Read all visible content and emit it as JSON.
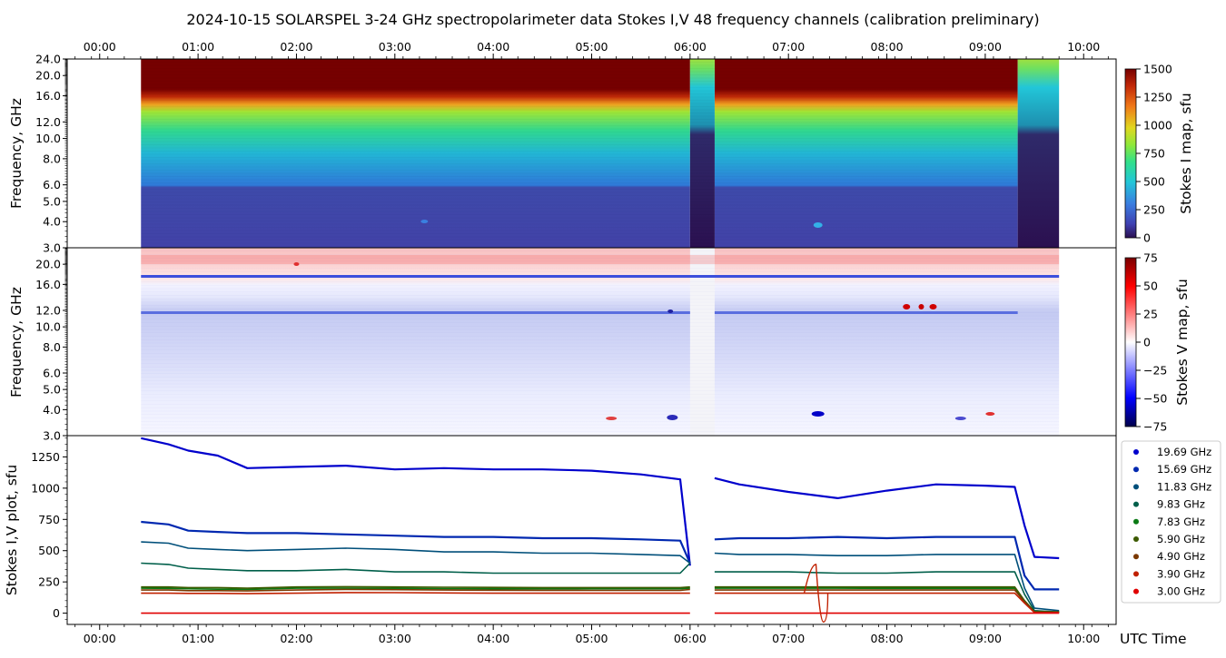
{
  "title": "2024-10-15  SOLARSPEL  3-24 GHz spectropolarimeter data   Stokes I,V   48 frequency channels   (calibration preliminary)",
  "time_ticks": [
    "00:00",
    "01:00",
    "02:00",
    "03:00",
    "04:00",
    "05:00",
    "06:00",
    "07:00",
    "08:00",
    "09:00",
    "10:00"
  ],
  "freq_ticks": [
    "3.0",
    "4.0",
    "5.0",
    "6.0",
    "8.0",
    "10.0",
    "12.0",
    "16.0",
    "20.0",
    "24.0"
  ],
  "panel1": {
    "ylabel": "Frequency, GHz",
    "cbar_label": "Stokes I map, sfu",
    "cbar_ticks": [
      "0",
      "250",
      "500",
      "750",
      "1000",
      "1250",
      "1500"
    ]
  },
  "panel2": {
    "ylabel": "Frequency, GHz",
    "cbar_label": "Stokes V map, sfu",
    "cbar_ticks": [
      "−75",
      "−50",
      "−25",
      "0",
      "25",
      "50",
      "75"
    ]
  },
  "panel3": {
    "ylabel": "Stokes I,V plot, sfu",
    "xlabel": "UTC Time",
    "y_ticks": [
      "0",
      "250",
      "500",
      "750",
      "1000",
      "1250"
    ]
  },
  "legend": [
    {
      "label": "19.69 GHz",
      "color": "#0000cc"
    },
    {
      "label": "15.69 GHz",
      "color": "#0028b0"
    },
    {
      "label": "11.83 GHz",
      "color": "#004f7a"
    },
    {
      "label": "9.83 GHz",
      "color": "#005f4a"
    },
    {
      "label": "7.83 GHz",
      "color": "#0a7a14"
    },
    {
      "label": "5.90 GHz",
      "color": "#3c5a00"
    },
    {
      "label": "4.90 GHz",
      "color": "#7a3800"
    },
    {
      "label": "3.90 GHz",
      "color": "#c02000"
    },
    {
      "label": "3.00 GHz",
      "color": "#e00000"
    }
  ],
  "chart_data": {
    "type": "line",
    "title": "2024-10-15  SOLARSPEL  3-24 GHz spectropolarimeter data   Stokes I,V   48 frequency channels   (calibration preliminary)",
    "xlabel": "UTC Time",
    "ylabel": "Stokes I,V plot, sfu",
    "xlim": [
      -0.33,
      10.33
    ],
    "ylim": [
      -90,
      1420
    ],
    "x": [
      0.42,
      0.7,
      0.9,
      1.2,
      1.5,
      2.0,
      2.5,
      3.0,
      3.5,
      4.0,
      4.5,
      5.0,
      5.5,
      5.9,
      6.0,
      6.25,
      6.5,
      7.0,
      7.5,
      8.0,
      8.5,
      9.0,
      9.3,
      9.4,
      9.5,
      9.75
    ],
    "gap": [
      6.0,
      6.25
    ],
    "series": [
      {
        "name": "19.69 GHz",
        "values": [
          1400,
          1350,
          1300,
          1260,
          1160,
          1170,
          1180,
          1150,
          1160,
          1150,
          1150,
          1140,
          1110,
          1070,
          380,
          1080,
          1030,
          970,
          920,
          980,
          1030,
          1020,
          1010,
          700,
          450,
          440
        ]
      },
      {
        "name": "15.69 GHz",
        "values": [
          730,
          710,
          660,
          650,
          640,
          640,
          630,
          620,
          610,
          610,
          600,
          600,
          590,
          580,
          400,
          590,
          600,
          600,
          610,
          600,
          610,
          610,
          610,
          300,
          190,
          190
        ]
      },
      {
        "name": "11.83 GHz",
        "values": [
          570,
          560,
          520,
          510,
          500,
          510,
          520,
          510,
          490,
          490,
          480,
          480,
          470,
          460,
          400,
          480,
          470,
          470,
          460,
          460,
          470,
          470,
          470,
          200,
          40,
          20
        ]
      },
      {
        "name": "9.83 GHz",
        "values": [
          400,
          390,
          360,
          350,
          340,
          340,
          350,
          330,
          330,
          320,
          320,
          320,
          320,
          320,
          400,
          330,
          330,
          330,
          320,
          320,
          330,
          330,
          330,
          150,
          20,
          10
        ]
      },
      {
        "name": "7.83 GHz",
        "values": [
          200,
          198,
          195,
          192,
          190,
          200,
          200,
          198,
          196,
          195,
          195,
          195,
          195,
          195,
          200,
          200,
          200,
          200,
          200,
          198,
          198,
          198,
          198,
          90,
          10,
          10
        ]
      },
      {
        "name": "5.90 GHz",
        "values": [
          210,
          210,
          205,
          205,
          200,
          210,
          212,
          210,
          208,
          206,
          205,
          205,
          205,
          205,
          210,
          210,
          210,
          210,
          210,
          210,
          210,
          210,
          210,
          100,
          12,
          10
        ]
      },
      {
        "name": "4.90 GHz",
        "values": [
          185,
          185,
          180,
          180,
          178,
          185,
          190,
          188,
          185,
          184,
          183,
          182,
          182,
          182,
          190,
          185,
          185,
          185,
          185,
          185,
          185,
          185,
          185,
          90,
          8,
          8
        ]
      },
      {
        "name": "3.90 GHz",
        "values": [
          160,
          160,
          158,
          158,
          156,
          160,
          165,
          164,
          162,
          160,
          160,
          160,
          160,
          160,
          160,
          160,
          160,
          160,
          160,
          160,
          160,
          160,
          160,
          80,
          5,
          5
        ]
      },
      {
        "name": "3.00 GHz",
        "values": [
          0,
          0,
          0,
          0,
          0,
          0,
          0,
          0,
          0,
          0,
          0,
          0,
          0,
          0,
          0,
          0,
          0,
          0,
          0,
          0,
          0,
          0,
          0,
          0,
          0,
          0
        ]
      }
    ],
    "event": {
      "series": "3.90 GHz",
      "time": 7.28,
      "peak": 390,
      "trough": -70
    },
    "stokes_i_map": {
      "freq_range_ghz": [
        3,
        24
      ],
      "time_range_h": [
        0.42,
        9.75
      ],
      "cbar_range_sfu": [
        0,
        1500
      ]
    },
    "stokes_v_map": {
      "freq_range_ghz": [
        3,
        24
      ],
      "time_range_h": [
        0.42,
        9.75
      ],
      "cbar_range_sfu": [
        -75,
        75
      ]
    }
  }
}
